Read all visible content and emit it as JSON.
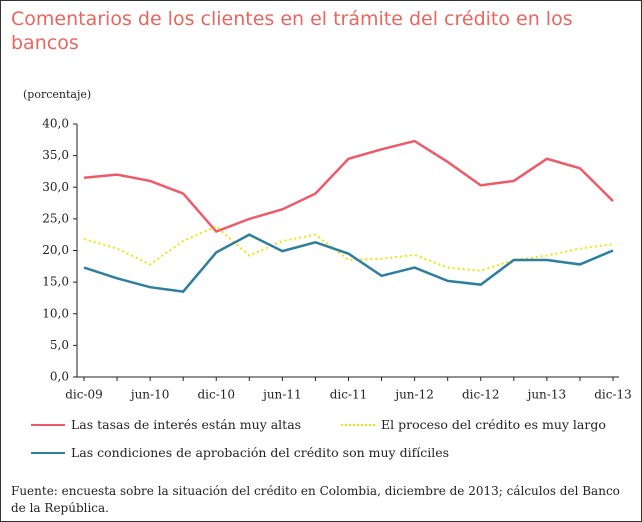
{
  "chart_data": {
    "type": "line",
    "title": "Comentarios de los clientes en el trámite del crédito en los bancos",
    "y_label": "(porcentaje)",
    "categories": [
      "dic-09",
      null,
      "jun-10",
      null,
      "dic-10",
      null,
      "jun-11",
      null,
      "dic-11",
      null,
      "jun-12",
      null,
      "dic-12",
      null,
      "jun-13",
      null,
      "dic-13"
    ],
    "series": [
      {
        "name": "Las tasas de interés están muy altas",
        "color": "#ef5a6a",
        "style": "solid",
        "values": [
          31.5,
          32,
          31,
          29,
          23,
          25,
          26.5,
          29,
          34.5,
          36,
          37.3,
          34,
          30.3,
          31,
          34.5,
          33,
          27.8
        ]
      },
      {
        "name": "El proceso del crédito es muy largo",
        "color": "#f2e300",
        "style": "dotted",
        "values": [
          21.8,
          20.3,
          17.8,
          21.5,
          23.8,
          19.2,
          21.5,
          22.5,
          18.5,
          18.7,
          19.3,
          17.3,
          16.8,
          18.5,
          19.2,
          20.3,
          21
        ]
      },
      {
        "name": "Las condiciones de aprobación del crédito son muy difíciles",
        "color": "#2e7f9e",
        "style": "solid",
        "values": [
          17.3,
          15.6,
          14.2,
          13.5,
          19.7,
          22.5,
          19.9,
          21.3,
          19.5,
          16,
          17.3,
          15.2,
          14.6,
          18.5,
          18.5,
          17.8,
          20
        ]
      }
    ],
    "ylim": [
      0,
      40
    ],
    "yticks": [
      {
        "value": 0,
        "label": "0,0"
      },
      {
        "value": 5,
        "label": "5,0"
      },
      {
        "value": 10,
        "label": "10,0"
      },
      {
        "value": 15,
        "label": "15,0"
      },
      {
        "value": 20,
        "label": "20,0"
      },
      {
        "value": 25,
        "label": "25,0"
      },
      {
        "value": 30,
        "label": "30,0"
      },
      {
        "value": 35,
        "label": "35,0"
      },
      {
        "value": 40,
        "label": "40,0"
      }
    ],
    "grid": false,
    "source": "Fuente: encuesta sobre la situación del crédito en Colombia, diciembre de 2013; cálculos del Banco de la República."
  }
}
